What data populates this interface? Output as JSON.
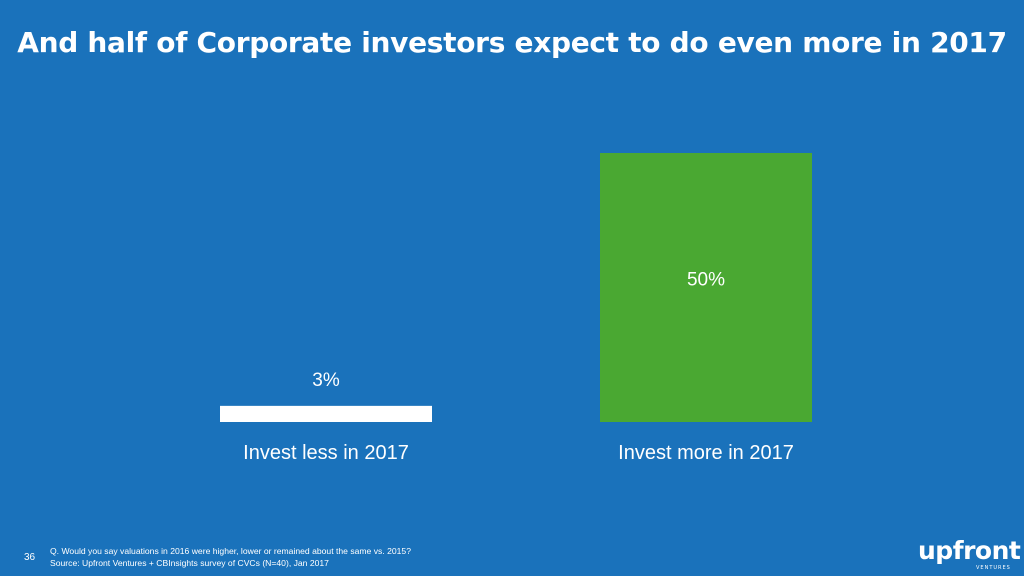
{
  "slide": {
    "title": "And half of Corporate investors expect to do even more in 2017",
    "page_number": "36",
    "footnote_question": "Q. Would you say valuations in 2016 were higher, lower or remained about the same vs. 2015?",
    "footnote_source": "Source: Upfront Ventures + CBInsights survey of CVCs (N=40), Jan 2017",
    "logo_text": "upfront",
    "logo_subtext": "VENTURES",
    "background_color": "#1a72bb"
  },
  "chart_data": {
    "type": "bar",
    "categories": [
      "Invest less in 2017",
      "Invest more in 2017"
    ],
    "values": [
      3,
      50
    ],
    "value_labels": [
      "3%",
      "50%"
    ],
    "colors": [
      "#ffffff",
      "#4aa832"
    ],
    "ylim": [
      0,
      50
    ],
    "grid": false,
    "title": "",
    "xlabel": "",
    "ylabel": ""
  }
}
